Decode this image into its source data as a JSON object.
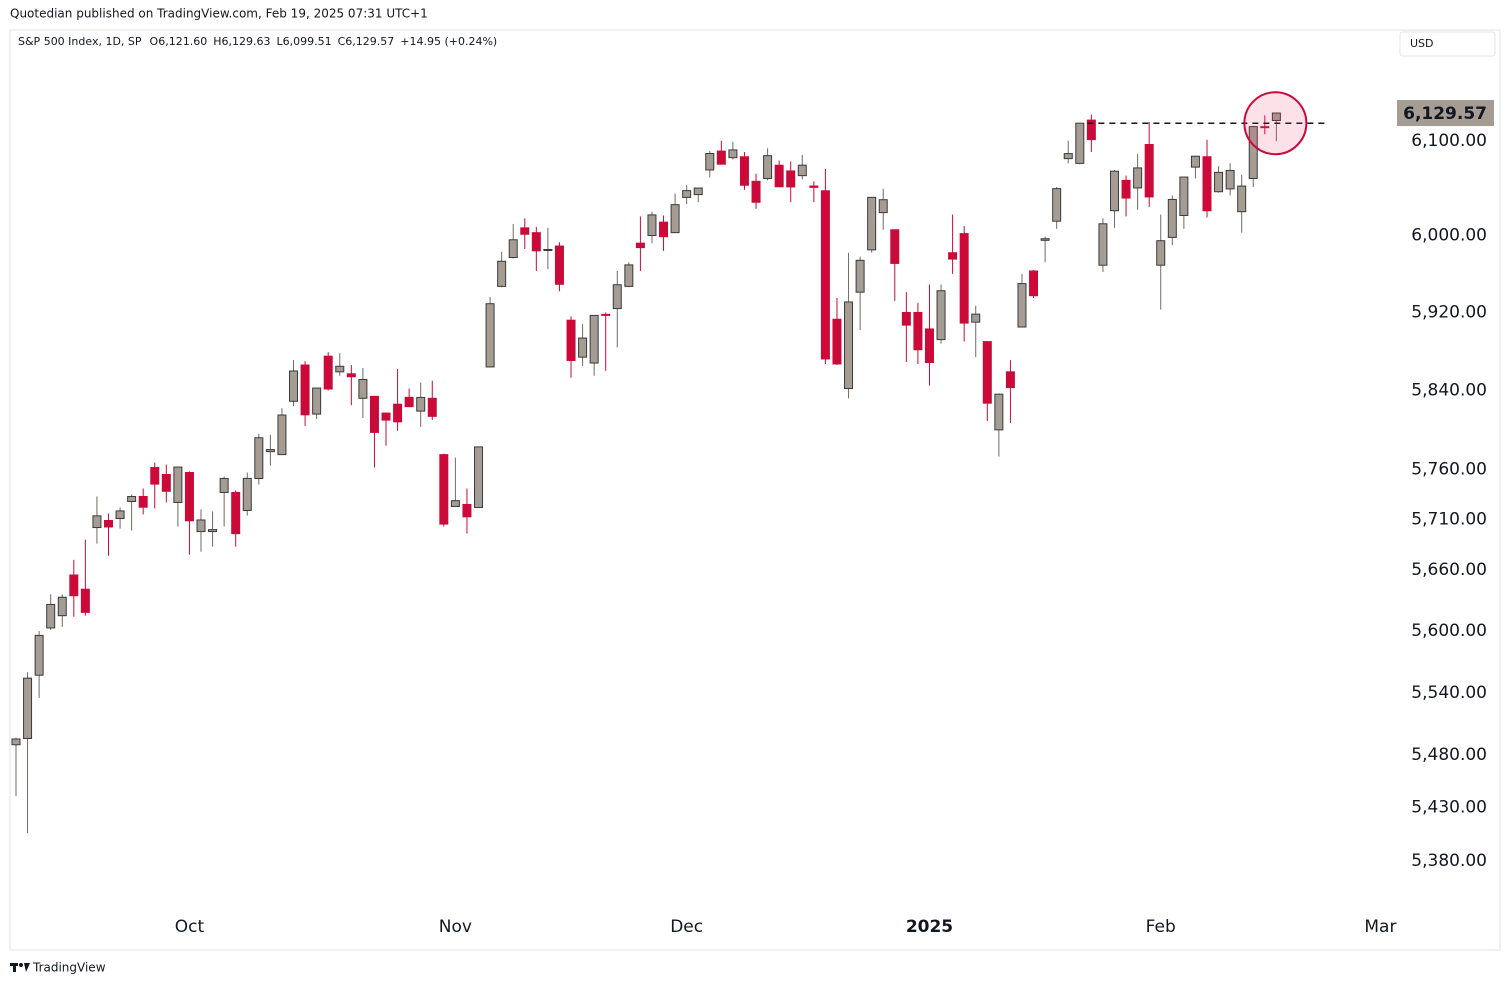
{
  "chart_data": {
    "type": "candlestick",
    "published": "Quotedian published on TradingView.com, Feb 19, 2025 07:31 UTC+1",
    "title": "S&P 500 Index, 1D, SP",
    "ohlc_text": [
      "O6,121.60",
      "H6,129.63",
      "L6,099.51",
      "C6,129.57",
      "+14.95 (+0.24%)"
    ],
    "currency": "USD",
    "footer": "TradingView",
    "log_scale": true,
    "up_color": "#a59d94",
    "down_color": "#cc0a3a",
    "ylim": [
      5334,
      6219
    ],
    "yticks": [
      {
        "value": 5380,
        "label": "5,380.00"
      },
      {
        "value": 5430,
        "label": "5,430.00"
      },
      {
        "value": 5480,
        "label": "5,480.00"
      },
      {
        "value": 5540,
        "label": "5,540.00"
      },
      {
        "value": 5600,
        "label": "5,600.00"
      },
      {
        "value": 5660,
        "label": "5,660.00"
      },
      {
        "value": 5710,
        "label": "5,710.00"
      },
      {
        "value": 5760,
        "label": "5,760.00"
      },
      {
        "value": 5840,
        "label": "5,840.00"
      },
      {
        "value": 5920,
        "label": "5,920.00"
      },
      {
        "value": 6000,
        "label": "6,000.00"
      },
      {
        "value": 6100,
        "label": "6,100.00"
      }
    ],
    "last_price": {
      "value": 6129.57,
      "label": "6,129.57"
    },
    "resistance_level": 6118.71,
    "categories": [
      null,
      null,
      null,
      null,
      null,
      null,
      null,
      null,
      null,
      null,
      null,
      null,
      null,
      null,
      null,
      "Oct",
      null,
      null,
      null,
      null,
      null,
      null,
      null,
      null,
      null,
      null,
      null,
      null,
      null,
      null,
      null,
      null,
      null,
      null,
      null,
      null,
      null,
      null,
      "Nov",
      null,
      null,
      null,
      null,
      null,
      null,
      null,
      null,
      null,
      null,
      null,
      null,
      null,
      null,
      null,
      null,
      null,
      null,
      null,
      "Dec",
      null,
      null,
      null,
      null,
      null,
      null,
      null,
      null,
      null,
      null,
      null,
      null,
      null,
      null,
      null,
      null,
      null,
      null,
      null,
      null,
      "2025",
      null,
      null,
      null,
      null,
      null,
      null,
      null,
      null,
      null,
      null,
      null,
      null,
      null,
      null,
      null,
      null,
      null,
      null,
      null,
      "Feb",
      null,
      null,
      null,
      null,
      null,
      null,
      null,
      null,
      null,
      null,
      null,
      null,
      null,
      null,
      null,
      null,
      null,
      null,
      "Mar",
      null
    ],
    "open": [
      5490,
      5496,
      5557,
      5603,
      5615,
      5655,
      5641,
      5702,
      5709,
      5711,
      5728,
      5733,
      5762,
      5755,
      5727,
      5757,
      5698,
      5698,
      5737,
      5737,
      5719,
      5751,
      5778,
      5775,
      5829,
      5866,
      5816,
      5875,
      5859,
      5857,
      5832,
      5834,
      5817,
      5826,
      5833,
      5819,
      5832,
      5775,
      5723,
      5725,
      5722,
      5864,
      5947,
      5977,
      6008,
      6003,
      5985,
      5989,
      5912,
      5874,
      5868,
      5918,
      5924,
      5947,
      5992,
      6000,
      6014,
      6003,
      6040,
      6043,
      6069,
      6089,
      6082,
      6083,
      6057,
      6060,
      6074,
      6068,
      6063,
      6052,
      6047,
      5913,
      5842,
      5941,
      5985,
      6024,
      6006,
      5920,
      5920,
      5903,
      5892,
      5982,
      6002,
      5910,
      5890,
      5800,
      5859,
      5905,
      5963,
      5995,
      6015,
      6081,
      6076,
      6122,
      5969,
      6026,
      6058,
      6050,
      6096,
      5969,
      5998,
      6021,
      6072,
      6083,
      6046,
      6049,
      6025,
      6060,
      6115,
      6121.6,
      null,
      null,
      null,
      null,
      null,
      null,
      null,
      null,
      null,
      null
    ],
    "high": [
      5497,
      5560,
      5600,
      5636,
      5636,
      5670,
      5690,
      5733,
      5716,
      5722,
      5735,
      5741,
      5767,
      5765,
      5763,
      5758,
      5720,
      5718,
      5753,
      5739,
      5757,
      5796,
      5795,
      5822,
      5871,
      5870,
      5843,
      5879,
      5878,
      5866,
      5863,
      5834,
      5817,
      5862,
      5842,
      5848,
      5850,
      5776,
      5772,
      5741,
      5783,
      5936,
      5983,
      6012,
      6018,
      6009,
      6008,
      5993,
      5916,
      5908,
      5917,
      5920,
      5963,
      5972,
      6020,
      6025,
      6021,
      6044,
      6053,
      6050,
      6089,
      6100,
      6099,
      6088,
      6065,
      6092,
      6079,
      6078,
      6085,
      6057,
      6070,
      5935,
      5982,
      5978,
      6040,
      6049,
      6006,
      5941,
      5930,
      5949,
      5949,
      6022,
      6010,
      5927,
      5890,
      5837,
      5871,
      5960,
      5964,
      5999,
      6051,
      6100,
      6119,
      6128,
      6018,
      6069,
      6063,
      6086,
      6120,
      6022,
      6042,
      6062,
      6084,
      6101,
      6073,
      6076,
      6064,
      6116,
      6127,
      6129.63,
      null,
      null,
      null,
      null,
      null,
      null,
      null,
      null,
      null,
      null
    ],
    "low": [
      5441,
      5406,
      5535,
      5601,
      5604,
      5614,
      5615,
      5686,
      5674,
      5701,
      5699,
      5715,
      5721,
      5727,
      5703,
      5675,
      5678,
      5683,
      5703,
      5683,
      5714,
      5745,
      5764,
      5775,
      5824,
      5804,
      5811,
      5840,
      5855,
      5825,
      5812,
      5762,
      5784,
      5799,
      5823,
      5803,
      5810,
      5703,
      5723,
      5696,
      5722,
      5864,
      5946,
      5976,
      5986,
      5963,
      5965,
      5942,
      5853,
      5865,
      5855,
      5860,
      5884,
      5946,
      5963,
      5992,
      5984,
      6003,
      6033,
      6035,
      6061,
      6076,
      6080,
      6048,
      6028,
      6058,
      6051,
      6035,
      6059,
      6035,
      5867,
      5866,
      5832,
      5902,
      5982,
      6006,
      5932,
      5869,
      5867,
      5845,
      5888,
      5960,
      5890,
      5874,
      5809,
      5773,
      5807,
      5905,
      5935,
      5972,
      6007,
      6076,
      6075,
      6088,
      5962,
      6008,
      6020,
      6027,
      6030,
      5923,
      5990,
      6007,
      6060,
      6019,
      6045,
      6042,
      6003,
      6051,
      6107,
      6099.51,
      null,
      null,
      null,
      null,
      null,
      null,
      null,
      null,
      null,
      null
    ],
    "close": [
      5495.52,
      5554.13,
      5595.76,
      5626.02,
      5633.09,
      5634.58,
      5618.26,
      5713.64,
      5702.55,
      5718.57,
      5732.93,
      5722.26,
      5745.37,
      5738.17,
      5762.48,
      5708.75,
      5709.54,
      5699.94,
      5751.07,
      5695.94,
      5751.13,
      5792.04,
      5780.05,
      5815.03,
      5859.85,
      5815.26,
      5842.47,
      5841.47,
      5864.67,
      5853.98,
      5851.2,
      5797.42,
      5809.86,
      5808.12,
      5823.52,
      5832.92,
      5813.67,
      5705.45,
      5728.8,
      5712.69,
      5782.76,
      5929.04,
      5973.1,
      5995.54,
      6001.35,
      5983.99,
      5985.38,
      5949.17,
      5870.62,
      5893.62,
      5916.98,
      5917.11,
      5948.71,
      5969.34,
      5987.37,
      6021.63,
      5998.74,
      6032.38,
      6047.15,
      6049.88,
      6086.49,
      6075.11,
      6090.27,
      6052.85,
      6034.91,
      6084.19,
      6051.25,
      6051.09,
      6074.08,
      6050.61,
      5872.16,
      5867.08,
      5930.85,
      5974.07,
      6040.04,
      6037.59,
      5970.84,
      5906.94,
      5881.63,
      5868.55,
      5942.47,
      5975.38,
      5909.03,
      5918.25,
      5827.04,
      5836.22,
      5842.91,
      5949.91,
      5937.34,
      5996.66,
      6049.24,
      6086.37,
      6118.71,
      6101.24,
      6012.28,
      6067.7,
      6039.31,
      6071.17,
      6040.53,
      5994.57,
      6037.88,
      6061.48,
      6083.57,
      6025.99,
      6066.44,
      6068.5,
      6051.97,
      6115.07,
      6114.63,
      6129.57,
      null,
      null,
      null,
      null,
      null,
      null,
      null,
      null,
      null,
      null
    ]
  }
}
